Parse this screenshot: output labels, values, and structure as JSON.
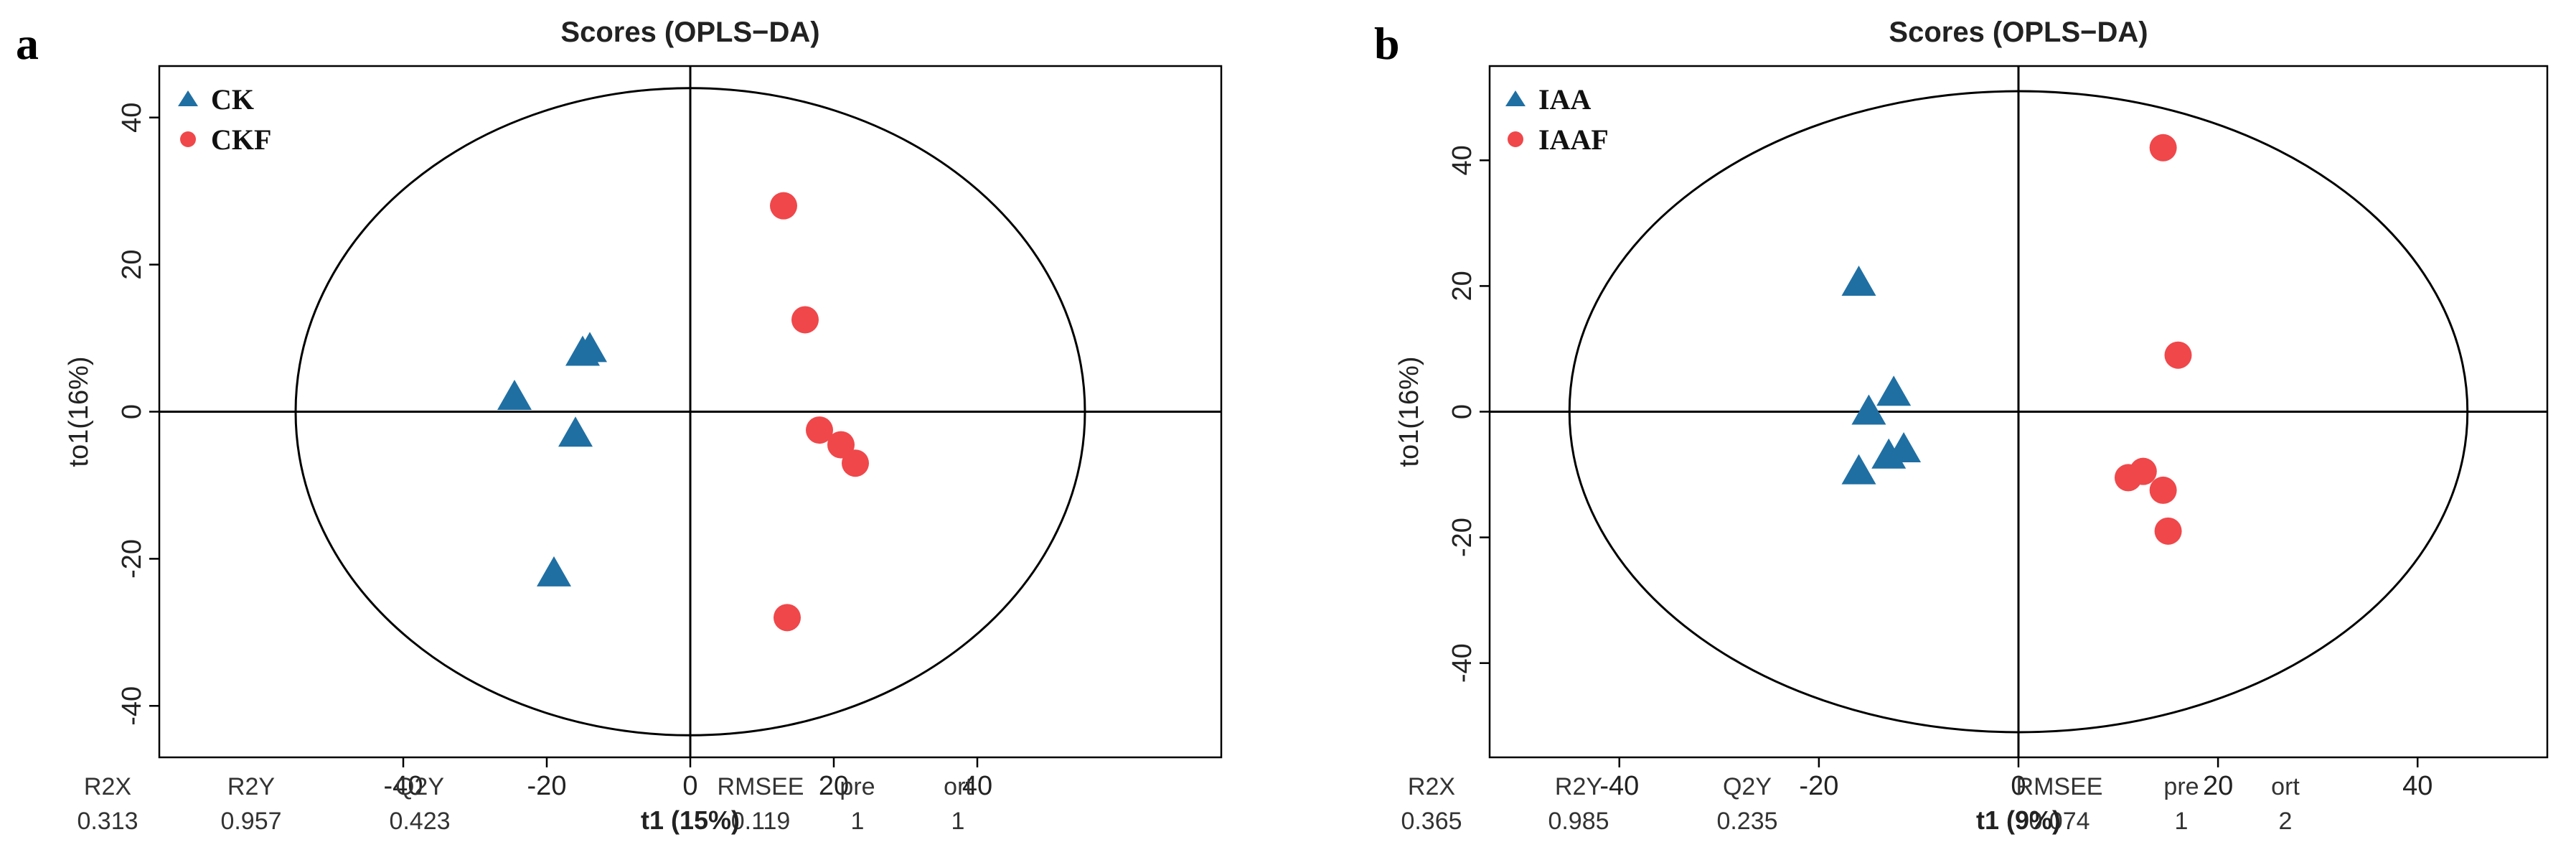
{
  "colors": {
    "triangle": "#1f6fa3",
    "circle": "#f0474a",
    "axis": "#000000"
  },
  "chart_data": [
    {
      "type": "scatter",
      "panel": "a",
      "title": "Scores (OPLS−DA)",
      "ylabel": "to1(16%)",
      "xlabel": "t1 (15%)",
      "xlim": [
        -74,
        74
      ],
      "ylim": [
        -47,
        47
      ],
      "xticks": [
        -40,
        -20,
        0,
        20,
        40
      ],
      "yticks": [
        -40,
        -20,
        0,
        20,
        40
      ],
      "ellipse": {
        "rx": 55,
        "ry": 44
      },
      "series": [
        {
          "name": "CK",
          "marker": "triangle",
          "points": [
            [
              -24.5,
              2
            ],
            [
              -16,
              -3
            ],
            [
              -15,
              8
            ],
            [
              -14,
              8.5
            ],
            [
              -19,
              -22
            ]
          ]
        },
        {
          "name": "CKF",
          "marker": "circle",
          "points": [
            [
              13,
              28
            ],
            [
              16,
              12.5
            ],
            [
              18,
              -2.5
            ],
            [
              21,
              -4.5
            ],
            [
              23,
              -7
            ],
            [
              13.5,
              -28
            ]
          ]
        }
      ],
      "metrics": {
        "labels": [
          "R2X",
          "R2Y",
          "Q2Y",
          "RMSEE",
          "pre",
          "ort"
        ],
        "values": [
          "0.313",
          "0.957",
          "0.423",
          "0.119",
          "1",
          "1"
        ]
      }
    },
    {
      "type": "scatter",
      "panel": "b",
      "title": "Scores (OPLS−DA)",
      "ylabel": "to1(16%)",
      "xlabel": "t1 (9%)",
      "xlim": [
        -53,
        53
      ],
      "ylim": [
        -55,
        55
      ],
      "xticks": [
        -40,
        -20,
        0,
        20,
        40
      ],
      "yticks": [
        -40,
        -20,
        0,
        20,
        40
      ],
      "ellipse": {
        "rx": 45,
        "ry": 51
      },
      "series": [
        {
          "name": "IAA",
          "marker": "triangle",
          "points": [
            [
              -16,
              20.5
            ],
            [
              -15,
              0
            ],
            [
              -12.5,
              3
            ],
            [
              -13,
              -7
            ],
            [
              -11.5,
              -6
            ],
            [
              -16,
              -9.5
            ]
          ]
        },
        {
          "name": "IAAF",
          "marker": "circle",
          "points": [
            [
              14.5,
              42
            ],
            [
              16,
              9
            ],
            [
              11,
              -10.5
            ],
            [
              12.5,
              -9.5
            ],
            [
              14.5,
              -12.5
            ],
            [
              15,
              -19
            ]
          ]
        }
      ],
      "metrics": {
        "labels": [
          "R2X",
          "R2Y",
          "Q2Y",
          "RMSEE",
          "pre",
          "ort"
        ],
        "values": [
          "0.365",
          "0.985",
          "0.235",
          "0.074",
          "1",
          "2"
        ]
      }
    }
  ]
}
